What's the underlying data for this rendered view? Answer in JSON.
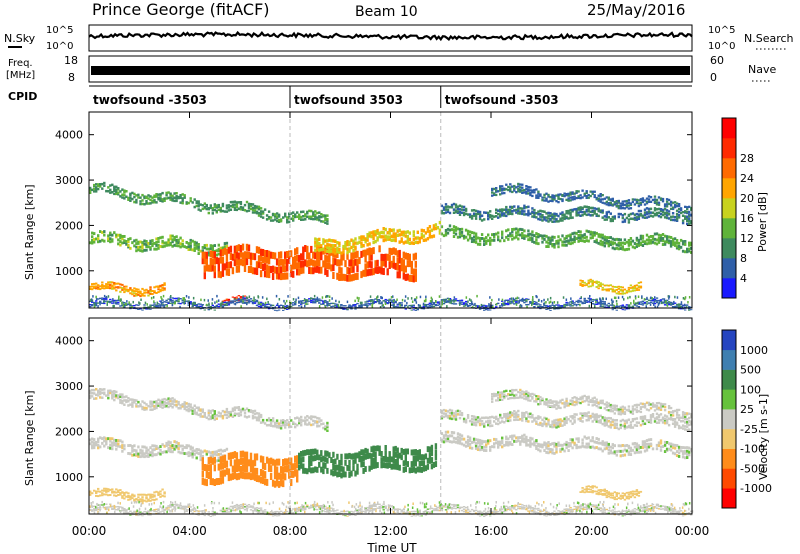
{
  "header": {
    "station": "Prince George (fitACF)",
    "beam": "Beam 10",
    "date": "25/May/2016"
  },
  "noise_panel": {
    "left_label": "N.Sky",
    "right_label": "N.Search",
    "left_ticks": [
      "10^5",
      "10^0"
    ],
    "right_ticks": [
      "10^5",
      "10^0"
    ]
  },
  "freq_panel": {
    "left_label_line1": "Freq.",
    "left_label_line2": "[MHz]",
    "right_label": "Nave",
    "left_ticks": [
      "18",
      "8"
    ],
    "right_ticks": [
      "60",
      "0"
    ]
  },
  "cpid_panel": {
    "label": "CPID",
    "segments": [
      {
        "name": "twofsound -3503",
        "start_hour": 0,
        "end_hour": 8
      },
      {
        "name": "twofsound 3503",
        "start_hour": 8,
        "end_hour": 14
      },
      {
        "name": "twofsound -3503",
        "start_hour": 14,
        "end_hour": 24
      }
    ]
  },
  "x_axis": {
    "label": "Time UT",
    "ticks": [
      "00:00",
      "04:00",
      "08:00",
      "12:00",
      "16:00",
      "20:00",
      "00:00"
    ],
    "range_hours": [
      0,
      24
    ]
  },
  "colors": {
    "power_scale": [
      "#1a1aff",
      "#2f5fa8",
      "#3e8a5e",
      "#5fb33a",
      "#c8d21e",
      "#ffa500",
      "#ff6a00",
      "#ff2a00",
      "#ff0000"
    ],
    "velocity_scale": [
      "#2545c0",
      "#3f7fb0",
      "#3e8a4a",
      "#66c23c",
      "#cacac4",
      "#f0c86e",
      "#ff8c1a",
      "#ff4a00",
      "#ff0000"
    ]
  },
  "chart_data": [
    {
      "type": "heatmap",
      "title": "Power",
      "xlabel": "Time UT",
      "ylabel": "Slant Range [km]",
      "ylim": [
        180,
        4500
      ],
      "yticks": [
        "1000",
        "2000",
        "3000",
        "4000"
      ],
      "colorbar": {
        "label": "Power [dB]",
        "range": [
          0,
          32
        ],
        "ticks": [
          "4",
          "8",
          "12",
          "16",
          "20",
          "24",
          "28"
        ]
      },
      "bands": [
        {
          "t": [
            0,
            9.5
          ],
          "r_start": 2800,
          "r_end": 2100,
          "width": 220,
          "value": 11
        },
        {
          "t": [
            0,
            5.5
          ],
          "r_start": 1700,
          "r_end": 1500,
          "width": 260,
          "value": 14
        },
        {
          "t": [
            4.5,
            13
          ],
          "r_start": 1200,
          "r_end": 1150,
          "width": 620,
          "value": 27
        },
        {
          "t": [
            9,
            14
          ],
          "r_start": 1500,
          "r_end": 1900,
          "width": 300,
          "value": 20
        },
        {
          "t": [
            14,
            24
          ],
          "r_start": 1800,
          "r_end": 1600,
          "width": 260,
          "value": 13
        },
        {
          "t": [
            14,
            24
          ],
          "r_start": 2300,
          "r_end": 2200,
          "width": 220,
          "value": 9
        },
        {
          "t": [
            16,
            24
          ],
          "r_start": 2800,
          "r_end": 2400,
          "width": 200,
          "value": 7
        },
        {
          "t": [
            0,
            3
          ],
          "r_start": 600,
          "r_end": 600,
          "width": 180,
          "value": 22
        },
        {
          "t": [
            19.5,
            22
          ],
          "r_start": 650,
          "r_end": 650,
          "width": 160,
          "value": 20
        },
        {
          "t": [
            5.3,
            6.3
          ],
          "r_start": 320,
          "r_end": 320,
          "width": 110,
          "value": 30
        },
        {
          "t": [
            0,
            24
          ],
          "r_start": 260,
          "r_end": 260,
          "width": 120,
          "value": 6
        }
      ]
    },
    {
      "type": "heatmap",
      "title": "Velocity",
      "xlabel": "Time UT",
      "ylabel": "Slant Range [km]",
      "ylim": [
        180,
        4500
      ],
      "yticks": [
        "1000",
        "2000",
        "3000",
        "4000"
      ],
      "colorbar": {
        "label": "Velocity [m s-1]",
        "ticks": [
          "1000",
          "500",
          "100",
          "25",
          "-25",
          "-100",
          "-500",
          "-1000"
        ]
      },
      "bands": [
        {
          "t": [
            0,
            9.5
          ],
          "r_start": 2800,
          "r_end": 2100,
          "width": 220,
          "value": 0
        },
        {
          "t": [
            0,
            5.5
          ],
          "r_start": 1700,
          "r_end": 1500,
          "width": 260,
          "value": 0
        },
        {
          "t": [
            4.5,
            8.3
          ],
          "r_start": 1200,
          "r_end": 1150,
          "width": 620,
          "value": -300
        },
        {
          "t": [
            8.3,
            13.8
          ],
          "r_start": 1250,
          "r_end": 1450,
          "width": 520,
          "value": 150
        },
        {
          "t": [
            14,
            24
          ],
          "r_start": 1800,
          "r_end": 1600,
          "width": 260,
          "value": 0
        },
        {
          "t": [
            14,
            24
          ],
          "r_start": 2300,
          "r_end": 2200,
          "width": 220,
          "value": 0
        },
        {
          "t": [
            16,
            24
          ],
          "r_start": 2800,
          "r_end": 2400,
          "width": 200,
          "value": 0
        },
        {
          "t": [
            0,
            3
          ],
          "r_start": 600,
          "r_end": 600,
          "width": 180,
          "value": -60
        },
        {
          "t": [
            19.5,
            22
          ],
          "r_start": 650,
          "r_end": 650,
          "width": 160,
          "value": -60
        },
        {
          "t": [
            0,
            24
          ],
          "r_start": 260,
          "r_end": 260,
          "width": 120,
          "value": 0
        }
      ]
    }
  ]
}
